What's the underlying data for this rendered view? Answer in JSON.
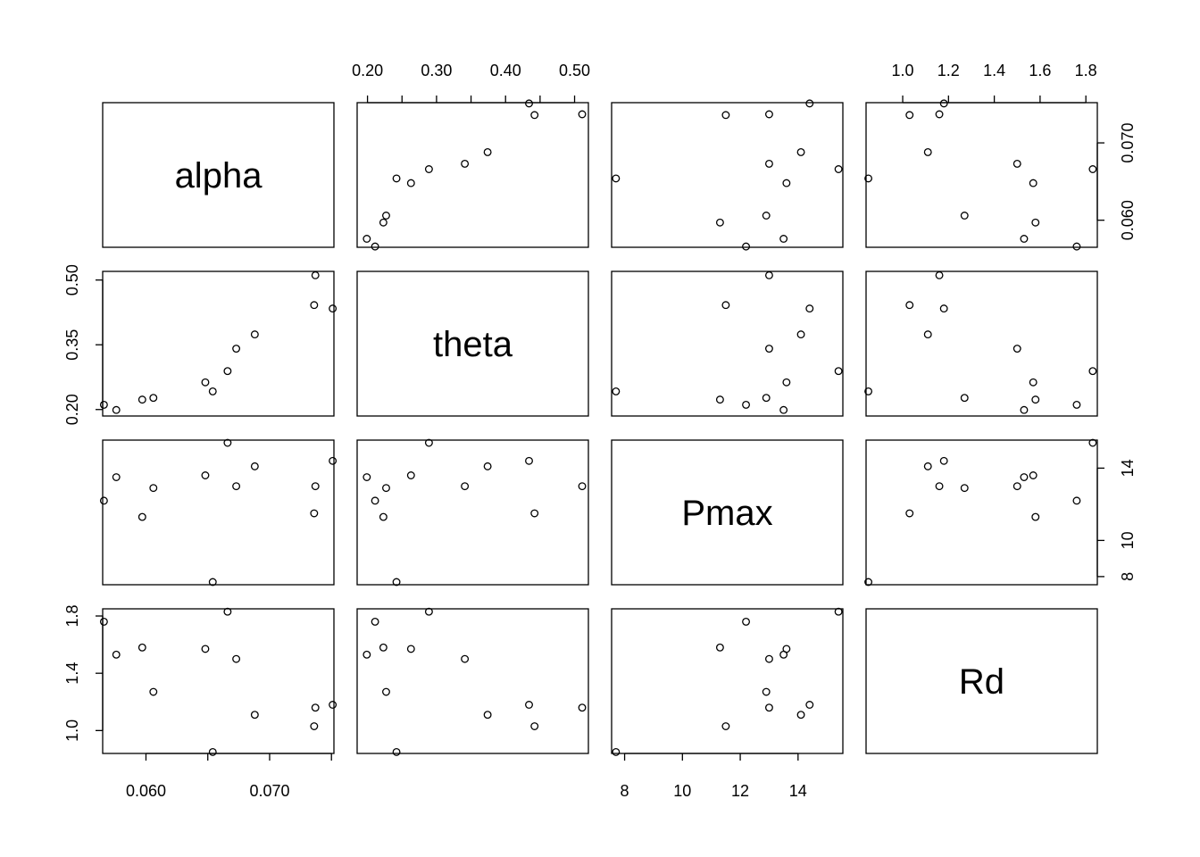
{
  "chart_data": {
    "type": "scatter",
    "subtype": "pairs-matrix",
    "variables": [
      "alpha",
      "theta",
      "Pmax",
      "Rd"
    ],
    "ranges": {
      "alpha": [
        0.0565,
        0.0752
      ],
      "theta": [
        0.185,
        0.52
      ],
      "Pmax": [
        7.55,
        15.55
      ],
      "Rd": [
        0.84,
        1.85
      ]
    },
    "axes": {
      "alpha": {
        "ticks": [
          0.06,
          0.07
        ],
        "tick_labels": [
          "0.060",
          "0.070"
        ],
        "minor_ticks": [
          0.065,
          0.075
        ]
      },
      "theta": {
        "ticks": [
          0.2,
          0.3,
          0.4,
          0.5
        ],
        "tick_labels": [
          "0.20",
          "0.30",
          "0.40",
          "0.50"
        ],
        "minor_ticks": [
          0.25,
          0.35,
          0.45
        ]
      },
      "Pmax": {
        "ticks": [
          8,
          10,
          12,
          14
        ],
        "tick_labels": [
          "8",
          "10",
          "12",
          "14"
        ]
      },
      "Rd": {
        "ticks": [
          1.0,
          1.2,
          1.4,
          1.6,
          1.8
        ],
        "tick_labels": [
          "1.0",
          "1.2",
          "1.4",
          "1.6",
          "1.8"
        ]
      }
    },
    "axes_left_labels": {
      "theta": {
        "ticks": [
          0.2,
          0.35,
          0.5
        ],
        "tick_labels": [
          "0.20",
          "0.35",
          "0.50"
        ]
      },
      "Rd": {
        "ticks": [
          1.0,
          1.4,
          1.8
        ],
        "tick_labels": [
          "1.0",
          "1.4",
          "1.8"
        ]
      }
    },
    "axes_right_labels": {
      "alpha": {
        "ticks": [
          0.06,
          0.07
        ],
        "tick_labels": [
          "0.060",
          "0.070"
        ]
      },
      "Pmax": {
        "ticks": [
          8,
          10,
          14
        ],
        "tick_labels": [
          "8",
          "10",
          "14"
        ]
      }
    },
    "observations": {
      "alpha": [
        0.0566,
        0.0576,
        0.0597,
        0.0606,
        0.0648,
        0.0654,
        0.0666,
        0.0673,
        0.0688,
        0.0736,
        0.0737,
        0.0751
      ],
      "theta": [
        0.211,
        0.199,
        0.223,
        0.227,
        0.263,
        0.242,
        0.289,
        0.341,
        0.374,
        0.442,
        0.511,
        0.434
      ],
      "Pmax": [
        12.2,
        13.5,
        11.3,
        12.9,
        13.6,
        7.7,
        15.4,
        13.0,
        14.1,
        11.5,
        13.0,
        14.4
      ],
      "Rd": [
        1.76,
        1.53,
        1.58,
        1.27,
        1.57,
        0.85,
        1.83,
        1.5,
        1.11,
        1.03,
        1.16,
        1.18
      ]
    },
    "grid": false,
    "legend": false
  }
}
